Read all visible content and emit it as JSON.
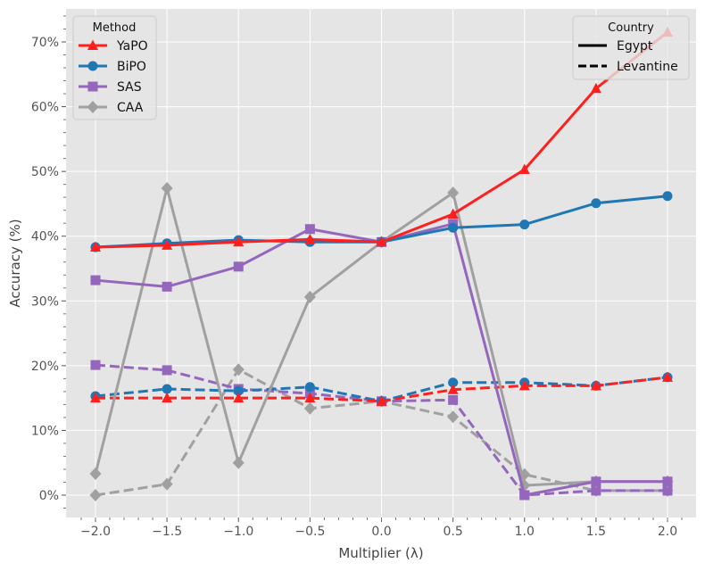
{
  "chart_data": {
    "type": "line",
    "xlabel": "Multiplier (λ)",
    "ylabel": "Accuracy (%)",
    "x": [
      -2.0,
      -1.5,
      -1.0,
      -0.5,
      0.0,
      0.5,
      1.0,
      1.5,
      2.0
    ],
    "xticks": [
      "−2.0",
      "−1.5",
      "−1.0",
      "−0.5",
      "0.0",
      "0.5",
      "1.0",
      "1.5",
      "2.0"
    ],
    "yticks": [
      "0%",
      "10%",
      "20%",
      "30%",
      "40%",
      "50%",
      "60%",
      "70%"
    ],
    "xlim": [
      -2.2,
      2.2
    ],
    "ylim": [
      -3.5,
      75
    ],
    "grid": true,
    "legend_method": {
      "title": "Method",
      "placement": "top-left",
      "entries": [
        "YaPO",
        "BiPO",
        "SAS",
        "CAA"
      ]
    },
    "legend_country": {
      "title": "Country",
      "placement": "top-right",
      "entries": [
        "Egypt",
        "Levantine"
      ]
    },
    "colors": {
      "YaPO": "#ff1f1f",
      "BiPO": "#1f77b4",
      "SAS": "#9467bd",
      "CAA": "#a0a0a0"
    },
    "markers": {
      "YaPO": "triangle",
      "BiPO": "circle",
      "SAS": "square",
      "CAA": "diamond"
    },
    "series": [
      {
        "method": "CAA",
        "country": "Levantine",
        "values": [
          0.0,
          1.7,
          19.4,
          13.4,
          14.5,
          12.1,
          3.2,
          0.7,
          0.7
        ]
      },
      {
        "method": "SAS",
        "country": "Levantine",
        "values": [
          20.1,
          19.3,
          16.4,
          15.7,
          14.5,
          14.7,
          0.0,
          0.7,
          0.7
        ]
      },
      {
        "method": "BiPO",
        "country": "Levantine",
        "values": [
          15.3,
          16.4,
          16.1,
          16.7,
          14.5,
          17.4,
          17.4,
          16.9,
          18.2
        ]
      },
      {
        "method": "YaPO",
        "country": "Levantine",
        "values": [
          15.0,
          15.0,
          15.0,
          15.0,
          14.5,
          16.3,
          16.9,
          16.9,
          18.2
        ]
      },
      {
        "method": "CAA",
        "country": "Egypt",
        "values": [
          3.3,
          47.4,
          5.0,
          30.6,
          39.1,
          46.7,
          1.5,
          2.1,
          2.1
        ]
      },
      {
        "method": "SAS",
        "country": "Egypt",
        "values": [
          33.2,
          32.2,
          35.3,
          41.1,
          39.1,
          41.9,
          0.0,
          2.1,
          2.1
        ]
      },
      {
        "method": "BiPO",
        "country": "Egypt",
        "values": [
          38.3,
          38.9,
          39.4,
          39.1,
          39.1,
          41.3,
          41.8,
          45.1,
          46.2
        ]
      },
      {
        "method": "YaPO",
        "country": "Egypt",
        "values": [
          38.3,
          38.6,
          39.1,
          39.5,
          39.1,
          43.4,
          50.3,
          62.8,
          71.5
        ]
      }
    ]
  }
}
